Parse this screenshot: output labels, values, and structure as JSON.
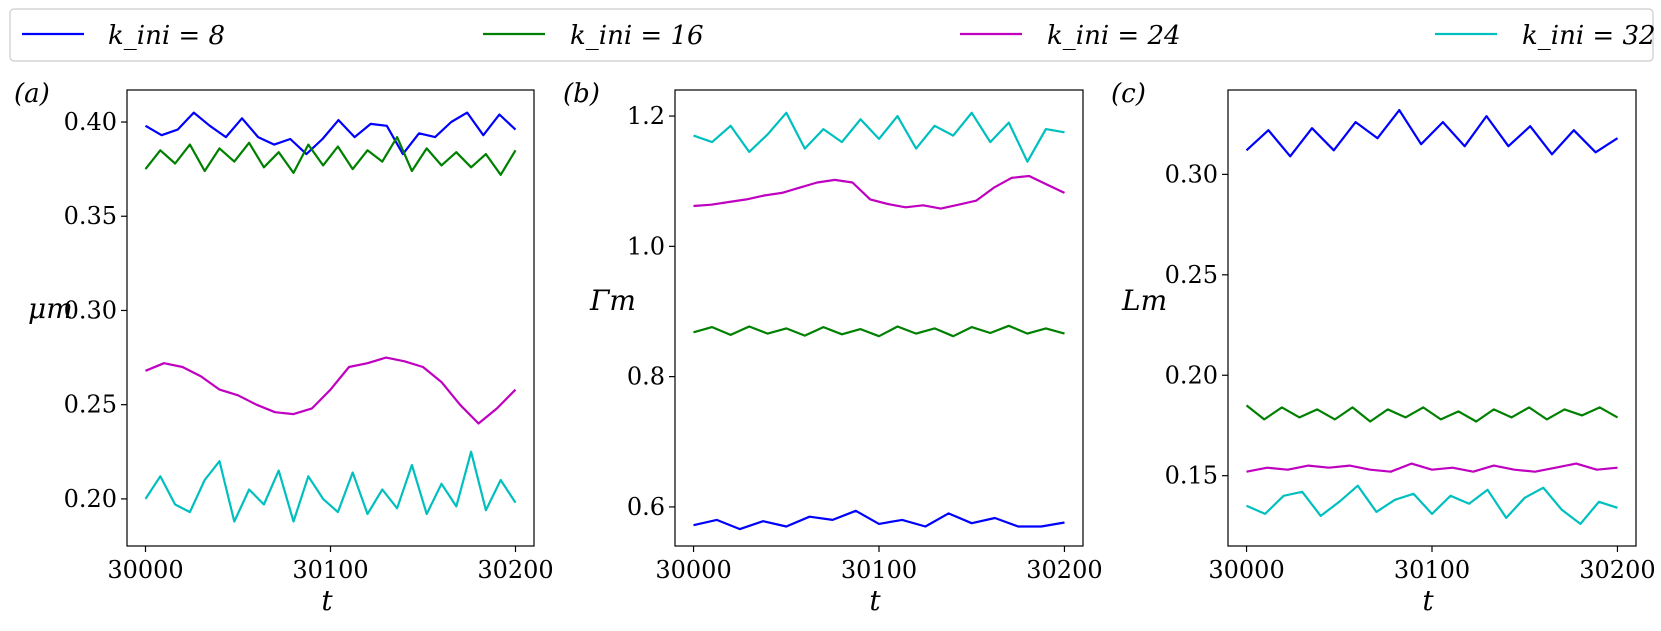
{
  "chart_data": {
    "type": "line",
    "legend": {
      "placement": "top",
      "entries": [
        {
          "label": "k_ini = 8",
          "color": "#0000ff"
        },
        {
          "label": "k_ini = 16",
          "color": "#008000"
        },
        {
          "label": "k_ini = 24",
          "color": "#c000c0"
        },
        {
          "label": "k_ini = 32",
          "color": "#00bfbf"
        }
      ]
    },
    "x": {
      "label": "t",
      "range": [
        29990,
        30210
      ],
      "ticks": [
        "30000",
        "30100",
        "30200"
      ],
      "tick_values": [
        30000,
        30100,
        30200
      ],
      "start": 30000,
      "end": 30200
    },
    "panels": [
      {
        "tag": "(a)",
        "ylabel": "μm",
        "ylim": [
          0.175,
          0.417
        ],
        "yticks": [
          "0.20",
          "0.25",
          "0.30",
          "0.35",
          "0.40"
        ],
        "ytick_values": [
          0.2,
          0.25,
          0.3,
          0.35,
          0.4
        ],
        "series": [
          {
            "name": "k_ini = 8",
            "color": "#0000ff",
            "values": [
              0.398,
              0.393,
              0.396,
              0.405,
              0.398,
              0.392,
              0.402,
              0.392,
              0.388,
              0.391,
              0.383,
              0.391,
              0.401,
              0.392,
              0.399,
              0.398,
              0.383,
              0.394,
              0.392,
              0.4,
              0.405,
              0.393,
              0.404,
              0.396
            ]
          },
          {
            "name": "k_ini = 16",
            "color": "#008000",
            "values": [
              0.375,
              0.385,
              0.378,
              0.388,
              0.374,
              0.386,
              0.379,
              0.389,
              0.376,
              0.384,
              0.373,
              0.388,
              0.377,
              0.387,
              0.375,
              0.385,
              0.379,
              0.392,
              0.374,
              0.386,
              0.377,
              0.384,
              0.376,
              0.383,
              0.372,
              0.385
            ]
          },
          {
            "name": "k_ini = 24",
            "color": "#c000c0",
            "values": [
              0.268,
              0.272,
              0.27,
              0.265,
              0.258,
              0.255,
              0.25,
              0.246,
              0.245,
              0.248,
              0.258,
              0.27,
              0.272,
              0.275,
              0.273,
              0.27,
              0.262,
              0.25,
              0.24,
              0.248,
              0.258
            ]
          },
          {
            "name": "k_ini = 32",
            "color": "#00bfbf",
            "values": [
              0.2,
              0.212,
              0.197,
              0.193,
              0.21,
              0.22,
              0.188,
              0.205,
              0.197,
              0.215,
              0.188,
              0.212,
              0.2,
              0.193,
              0.214,
              0.192,
              0.205,
              0.195,
              0.218,
              0.192,
              0.208,
              0.196,
              0.225,
              0.194,
              0.21,
              0.198
            ]
          }
        ]
      },
      {
        "tag": "(b)",
        "ylabel": "Γm",
        "ylim": [
          0.54,
          1.24
        ],
        "yticks": [
          "0.6",
          "0.8",
          "1.0",
          "1.2"
        ],
        "ytick_values": [
          0.6,
          0.8,
          1.0,
          1.2
        ],
        "series": [
          {
            "name": "k_ini = 8",
            "color": "#0000ff",
            "values": [
              0.572,
              0.58,
              0.566,
              0.578,
              0.57,
              0.585,
              0.58,
              0.594,
              0.574,
              0.58,
              0.57,
              0.59,
              0.575,
              0.583,
              0.57,
              0.57,
              0.576
            ]
          },
          {
            "name": "k_ini = 16",
            "color": "#008000",
            "values": [
              0.868,
              0.876,
              0.864,
              0.877,
              0.866,
              0.874,
              0.863,
              0.876,
              0.865,
              0.873,
              0.862,
              0.877,
              0.866,
              0.874,
              0.862,
              0.876,
              0.867,
              0.878,
              0.866,
              0.874,
              0.866
            ]
          },
          {
            "name": "k_ini = 24",
            "color": "#c000c0",
            "values": [
              1.062,
              1.064,
              1.068,
              1.072,
              1.078,
              1.082,
              1.09,
              1.098,
              1.102,
              1.098,
              1.072,
              1.065,
              1.06,
              1.063,
              1.058,
              1.064,
              1.07,
              1.09,
              1.105,
              1.108,
              1.095,
              1.082
            ]
          },
          {
            "name": "k_ini = 32",
            "color": "#00bfbf",
            "values": [
              1.17,
              1.16,
              1.185,
              1.145,
              1.172,
              1.205,
              1.15,
              1.18,
              1.16,
              1.195,
              1.165,
              1.2,
              1.15,
              1.185,
              1.17,
              1.205,
              1.16,
              1.19,
              1.13,
              1.18,
              1.175
            ]
          }
        ]
      },
      {
        "tag": "(c)",
        "ylabel": "Lm",
        "ylim": [
          0.115,
          0.342
        ],
        "yticks": [
          "0.15",
          "0.20",
          "0.25",
          "0.30"
        ],
        "ytick_values": [
          0.15,
          0.2,
          0.25,
          0.3
        ],
        "series": [
          {
            "name": "k_ini = 8",
            "color": "#0000ff",
            "values": [
              0.312,
              0.322,
              0.309,
              0.323,
              0.312,
              0.326,
              0.318,
              0.332,
              0.315,
              0.326,
              0.314,
              0.329,
              0.314,
              0.324,
              0.31,
              0.322,
              0.311,
              0.318
            ]
          },
          {
            "name": "k_ini = 16",
            "color": "#008000",
            "values": [
              0.185,
              0.178,
              0.184,
              0.179,
              0.183,
              0.178,
              0.184,
              0.177,
              0.183,
              0.179,
              0.184,
              0.178,
              0.182,
              0.177,
              0.183,
              0.179,
              0.184,
              0.178,
              0.183,
              0.18,
              0.184,
              0.179
            ]
          },
          {
            "name": "k_ini = 24",
            "color": "#c000c0",
            "values": [
              0.152,
              0.154,
              0.153,
              0.155,
              0.154,
              0.155,
              0.153,
              0.152,
              0.156,
              0.153,
              0.154,
              0.152,
              0.155,
              0.153,
              0.152,
              0.154,
              0.156,
              0.153,
              0.154
            ]
          },
          {
            "name": "k_ini = 32",
            "color": "#00bfbf",
            "values": [
              0.135,
              0.131,
              0.14,
              0.142,
              0.13,
              0.137,
              0.145,
              0.132,
              0.138,
              0.141,
              0.131,
              0.14,
              0.136,
              0.143,
              0.129,
              0.139,
              0.144,
              0.133,
              0.126,
              0.137,
              0.134
            ]
          }
        ]
      }
    ]
  }
}
